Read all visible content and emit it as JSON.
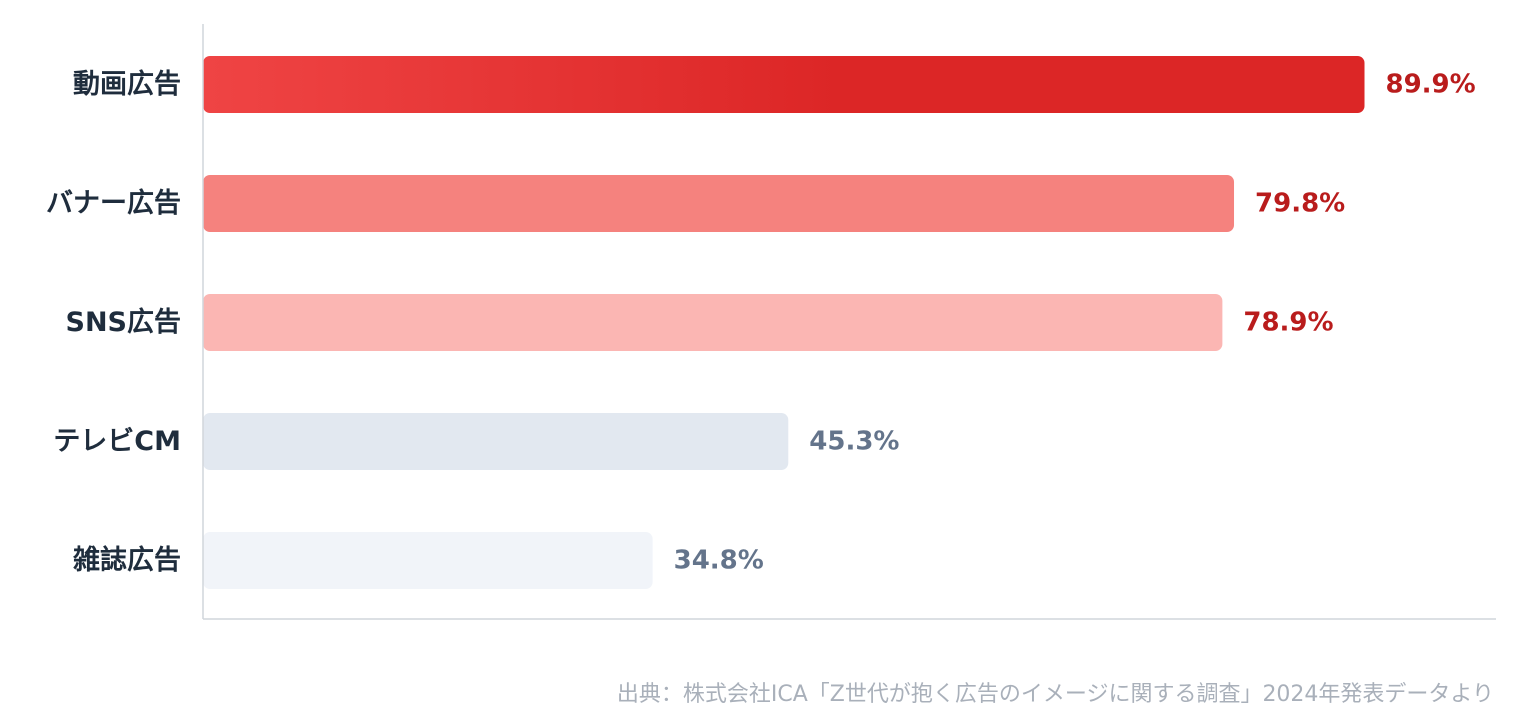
{
  "chart_data": {
    "type": "bar",
    "orientation": "horizontal",
    "categories": [
      "動画広告",
      "バナー広告",
      "SNS広告",
      "テレビCM",
      "雑誌広告"
    ],
    "values": [
      89.9,
      79.8,
      78.9,
      45.3,
      34.8
    ],
    "value_labels": [
      "89.9%",
      "79.8%",
      "78.9%",
      "45.3%",
      "34.8%"
    ],
    "xlim": [
      0,
      100
    ],
    "grid": false,
    "legend": "none",
    "bar_colors": [
      "#dc2626",
      "#f5827e",
      "#fbb6b3",
      "#e2e8f0",
      "#f1f4f9"
    ],
    "gradient_start": "#ef4444",
    "label_colors": [
      "#b91c1c",
      "#b91c1c",
      "#b91c1c",
      "#64748b",
      "#64748b"
    ],
    "category_label_color": "#1f2d3d",
    "axis_color": "#d1d5db"
  },
  "source": "出典：株式会社ICA「Z世代が抱く広告のイメージに関する調査」2024年発表データより"
}
